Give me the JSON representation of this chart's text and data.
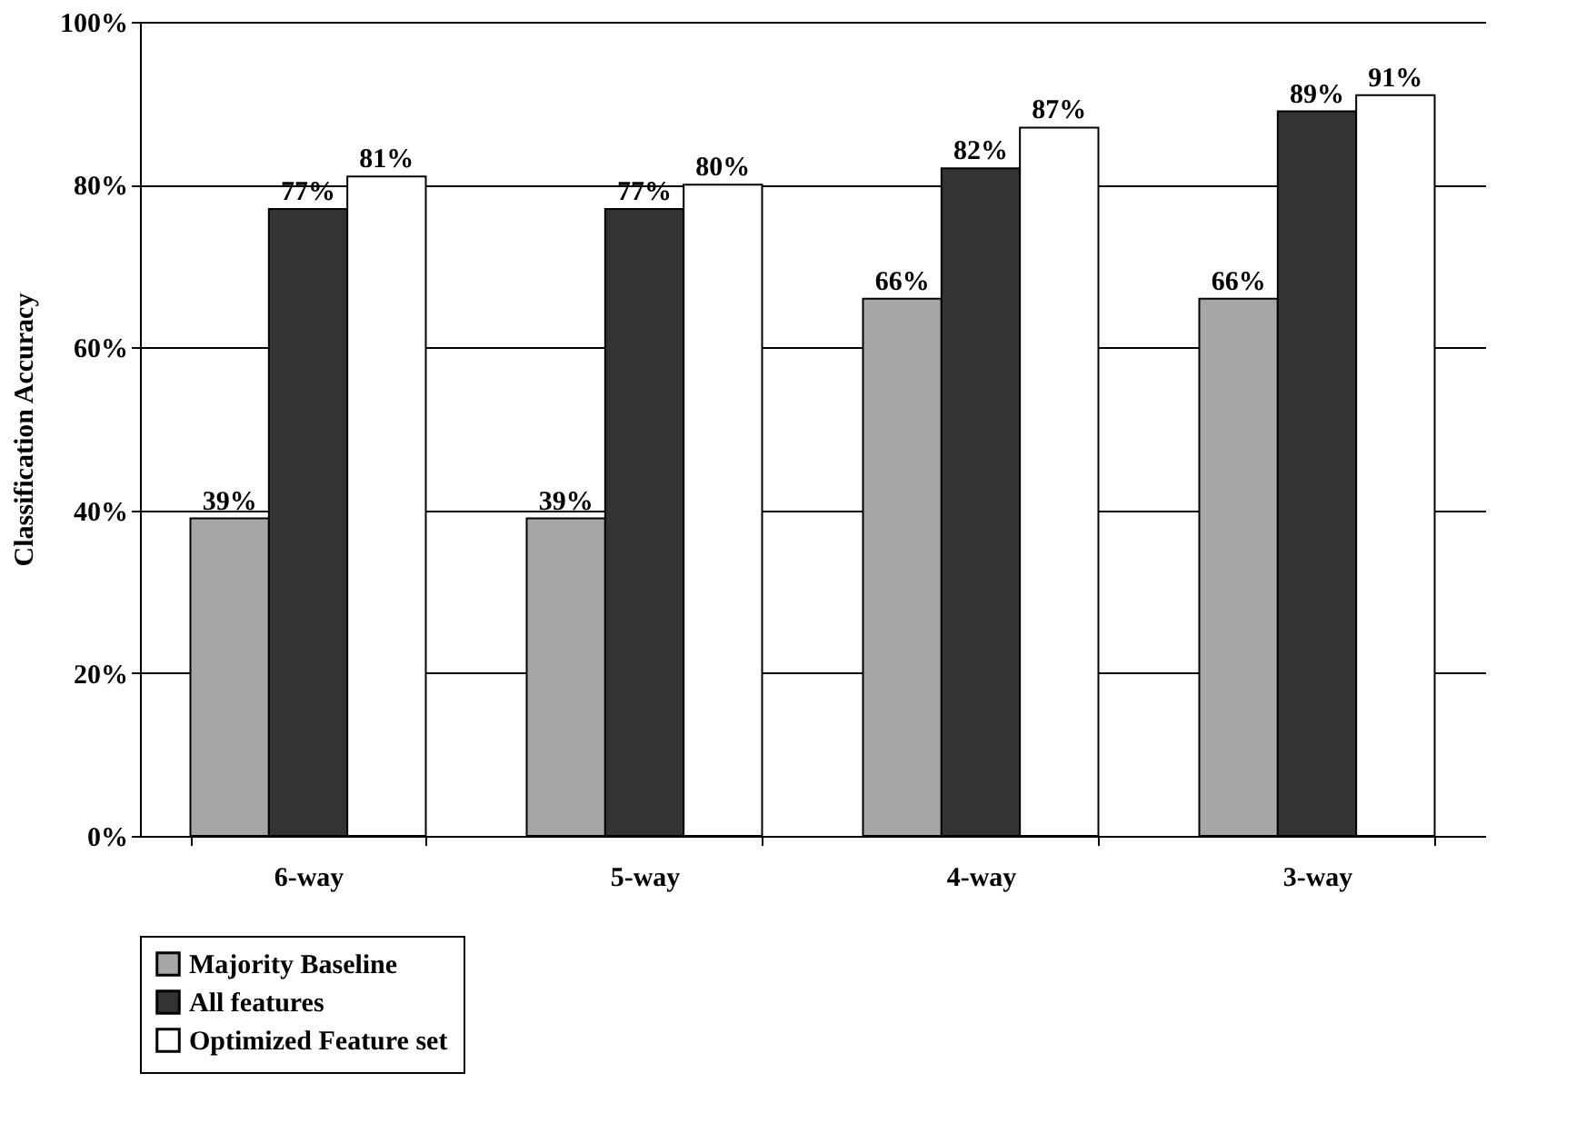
{
  "chart_data": {
    "type": "bar",
    "ylabel": "Classification Accuracy",
    "categories": [
      "6-way",
      "5-way",
      "4-way",
      "3-way"
    ],
    "series": [
      {
        "name": "Majority Baseline",
        "color": "#a6a6a6",
        "values": [
          39,
          39,
          66,
          66
        ],
        "value_labels": [
          "39%",
          "39%",
          "66%",
          "66%"
        ]
      },
      {
        "name": "All features",
        "color": "#333333",
        "values": [
          77,
          77,
          82,
          89
        ],
        "value_labels": [
          "77%",
          "77%",
          "82%",
          "89%"
        ]
      },
      {
        "name": "Optimized Feature set",
        "color": "#ffffff",
        "values": [
          81,
          80,
          87,
          91
        ],
        "value_labels": [
          "81%",
          "80%",
          "87%",
          "91%"
        ]
      }
    ],
    "ylim": [
      0,
      100
    ],
    "yticks": [
      {
        "value": 0,
        "label": "0%"
      },
      {
        "value": 20,
        "label": "20%"
      },
      {
        "value": 40,
        "label": "40%"
      },
      {
        "value": 60,
        "label": "60%"
      },
      {
        "value": 80,
        "label": "80%"
      },
      {
        "value": 100,
        "label": "100%"
      }
    ],
    "grid": "y",
    "legend": "bottom"
  }
}
